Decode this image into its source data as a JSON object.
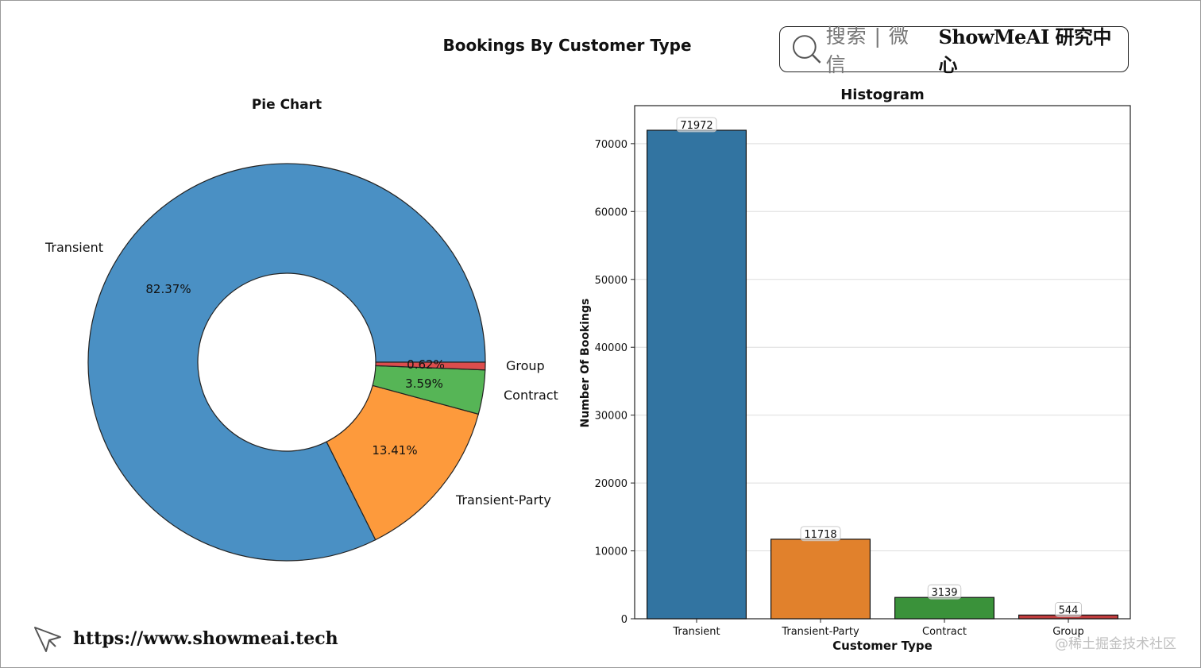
{
  "figure_title": "Bookings By Customer Type",
  "search_box": {
    "cn_text": "搜索 | 微信",
    "brand": "ShowMeAI 研究中心"
  },
  "footer": {
    "url": "https://www.showmeai.tech",
    "watermark": "@稀土掘金技术社区"
  },
  "colors": {
    "transient": "#4a90c4",
    "transient_party": "#fd9a3c",
    "contract": "#56b556",
    "group": "#dc4d4d"
  },
  "chart_data": [
    {
      "type": "pie",
      "title": "Pie Chart",
      "donut": true,
      "slices": [
        {
          "label": "Transient",
          "value": 82.37,
          "pct_label": "82.37%",
          "color": "#4a90c4"
        },
        {
          "label": "Transient-Party",
          "value": 13.41,
          "pct_label": "13.41%",
          "color": "#fd9a3c"
        },
        {
          "label": "Contract",
          "value": 3.59,
          "pct_label": "3.59%",
          "color": "#56b556"
        },
        {
          "label": "Group",
          "value": 0.62,
          "pct_label": "0.62%",
          "color": "#dc4d4d"
        }
      ]
    },
    {
      "type": "bar",
      "title": "Histogram",
      "xlabel": "Customer Type",
      "ylabel": "Number Of Bookings",
      "categories": [
        "Transient",
        "Transient-Party",
        "Contract",
        "Group"
      ],
      "values": [
        71972,
        11718,
        3139,
        544
      ],
      "value_labels": [
        "71972",
        "11718",
        "3139",
        "544"
      ],
      "colors": [
        "#3274a1",
        "#e1812c",
        "#3a923a",
        "#c03d3e"
      ],
      "ylim": [
        0,
        75600
      ],
      "yticks": [
        0,
        10000,
        20000,
        30000,
        40000,
        50000,
        60000,
        70000
      ],
      "ytick_labels": [
        "0",
        "10000",
        "20000",
        "30000",
        "40000",
        "50000",
        "60000",
        "70000"
      ],
      "grid": "horizontal"
    }
  ]
}
